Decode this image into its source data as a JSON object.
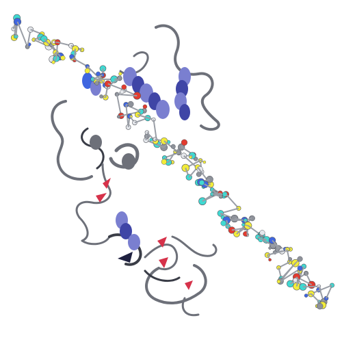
{
  "scene": {
    "subject": "protein-ribbon-with-stick-ligand",
    "colors": {
      "background": "#ffffff",
      "ribbon_gray": "#6d7079",
      "ribbon_dark": "#3a3d47",
      "helix_blue": "#7a7fd0",
      "helix_blue_dark": "#3f45a6",
      "strand_red": "#d6324a",
      "atom_yellow": "#f2ec3a",
      "atom_cyan": "#3fd9d2",
      "atom_white": "#e6e8ec",
      "atom_gray": "#8e929a",
      "atom_red": "#e23b2f",
      "atom_blue": "#3f66e0"
    },
    "legend": []
  }
}
